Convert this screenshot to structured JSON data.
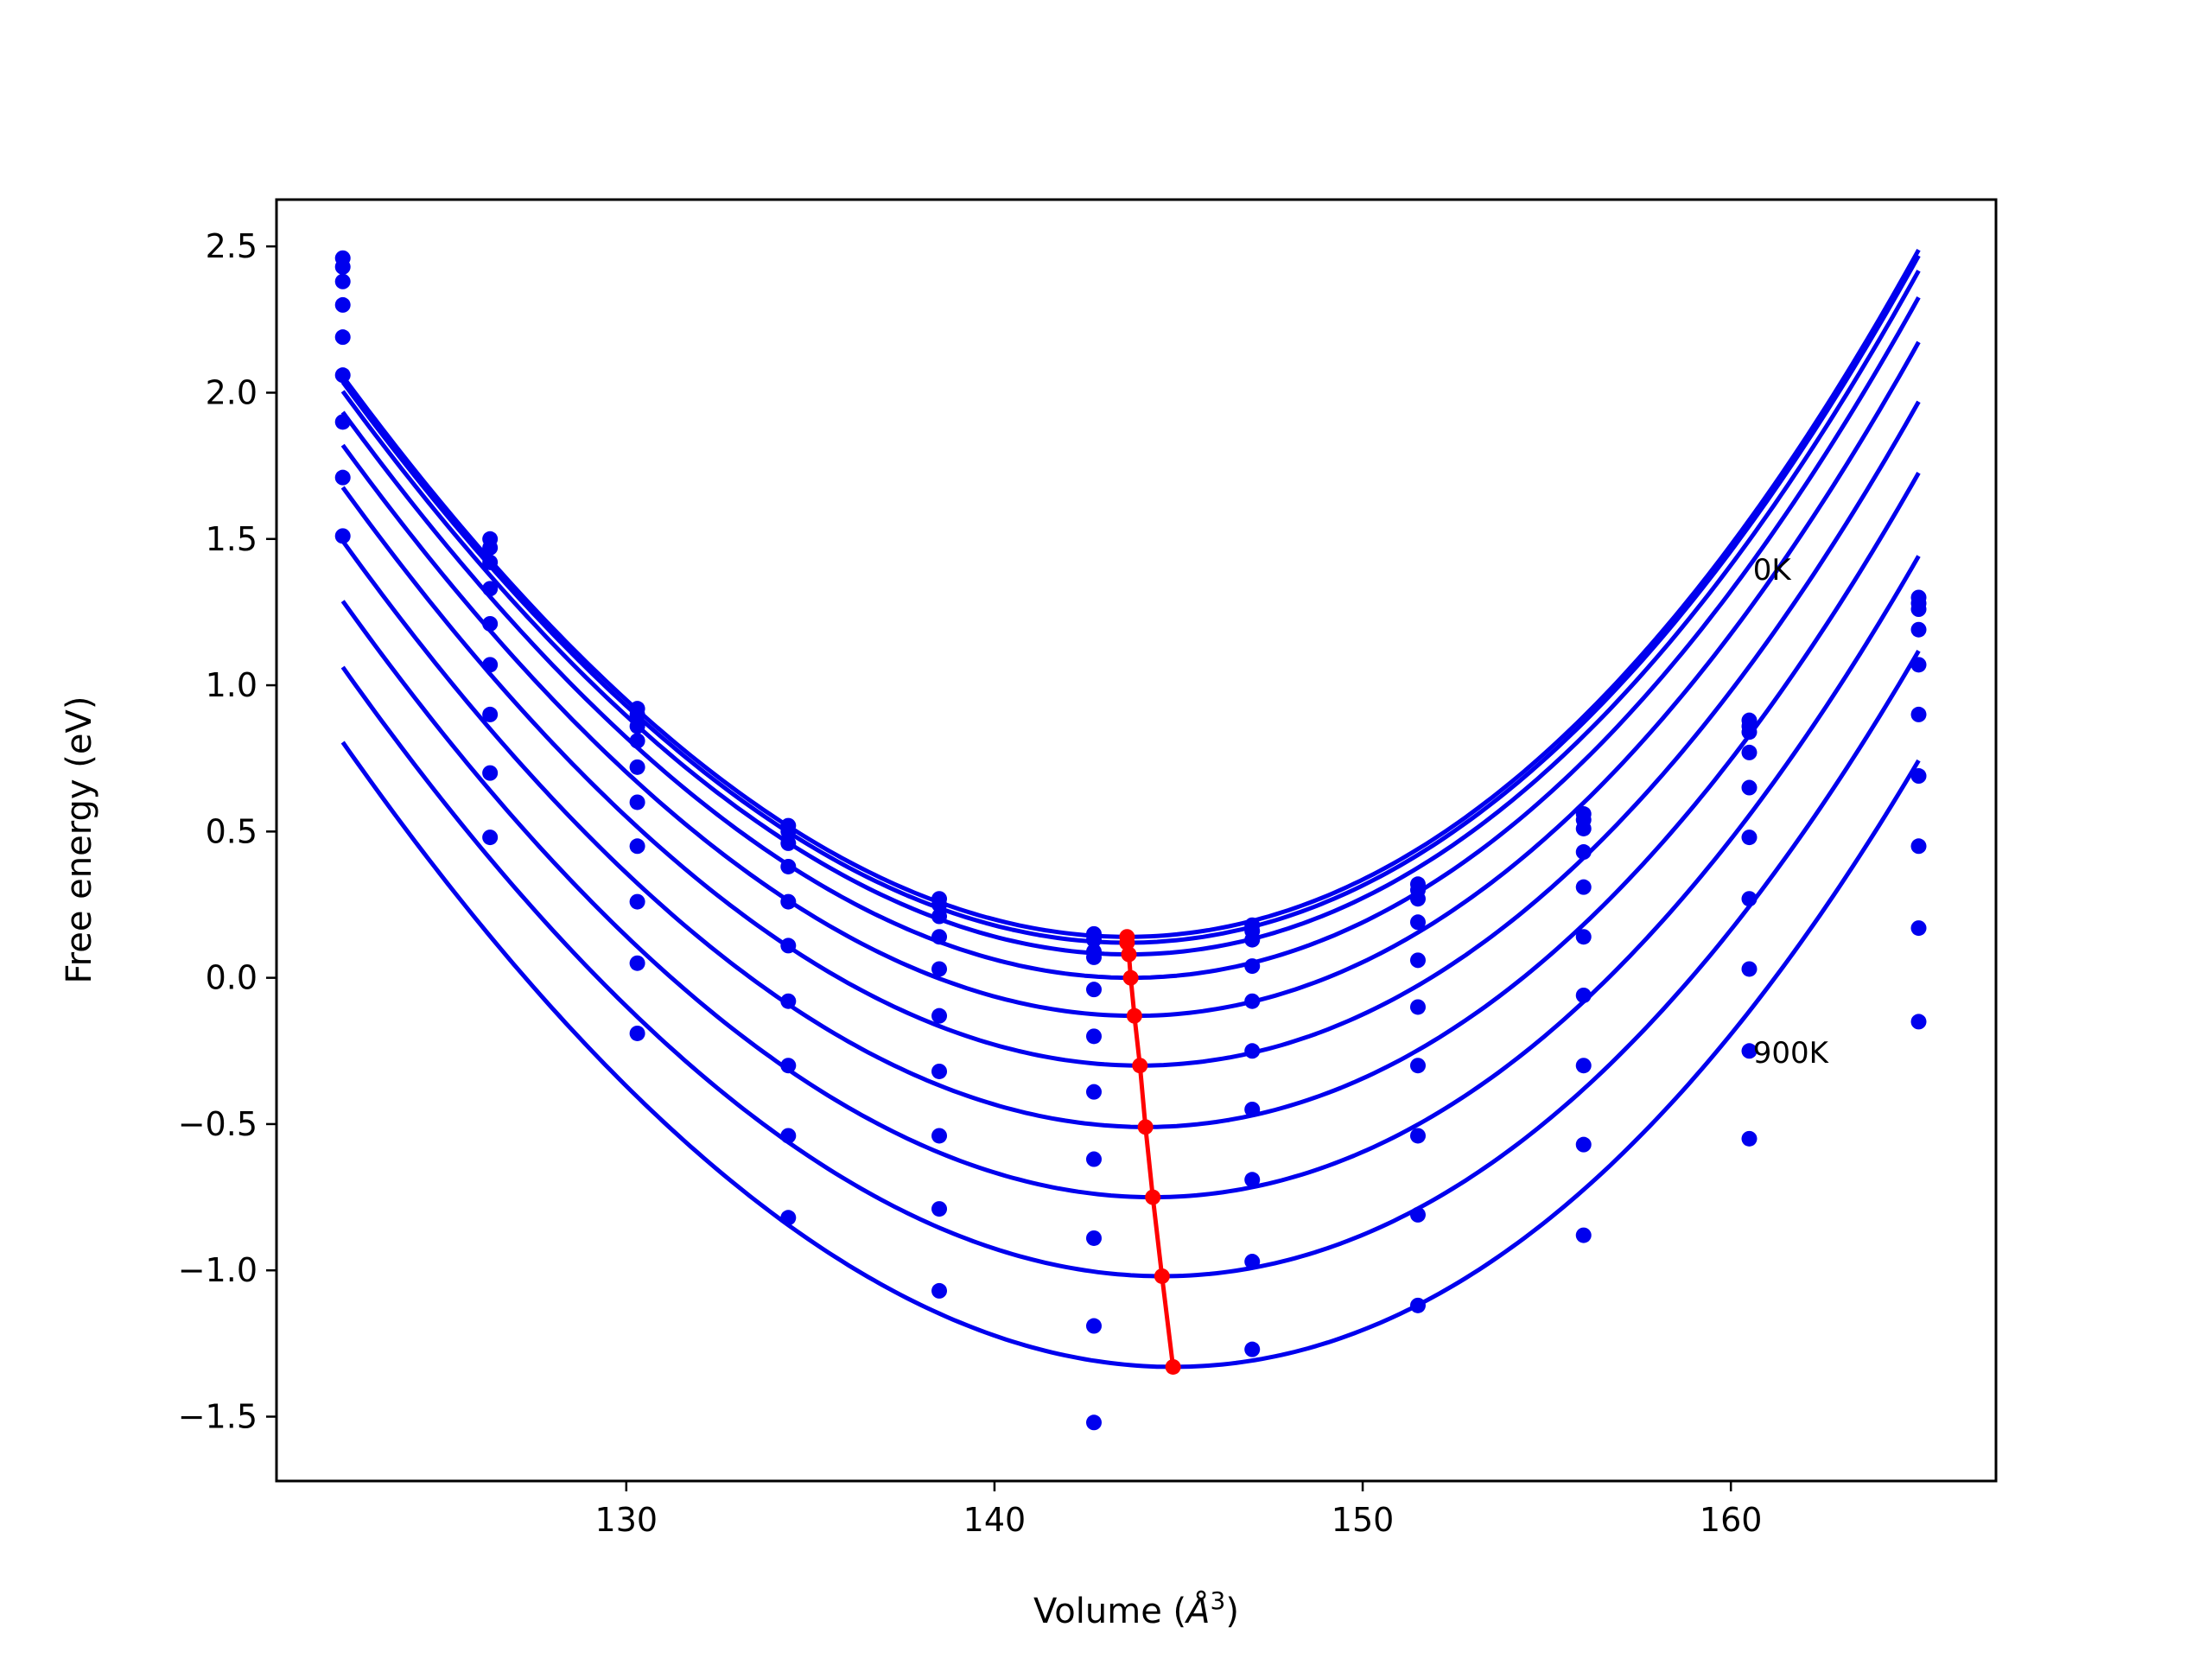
{
  "chart_data": {
    "type": "scatter",
    "title": "",
    "xlabel": "Volume (",
    "xlabel_unit": "Å",
    "xlabel_sup": "3",
    "xlabel_close": ")",
    "ylabel": "Free energy (eV)",
    "xlim": [
      120.5,
      167.2
    ],
    "ylim": [
      -1.72,
      2.66
    ],
    "x_ticks": [
      130,
      140,
      150,
      160
    ],
    "y_ticks": [
      2.5,
      2.0,
      1.5,
      1.0,
      0.5,
      0.0,
      -0.5,
      -1.0,
      -1.5
    ],
    "x_tick_labels": [
      "130",
      "140",
      "150",
      "160"
    ],
    "y_tick_labels": [
      "2.5",
      "2.0",
      "1.5",
      "1.0",
      "0.5",
      "0.0",
      "−0.5",
      "−1.0",
      "−1.5"
    ],
    "grid": false,
    "annotations": [
      {
        "text": "0K",
        "x": 160.6,
        "y": 1.36
      },
      {
        "text": "900K",
        "x": 160.6,
        "y": -0.29
      }
    ],
    "x": [
      122.3,
      126.3,
      130.3,
      134.4,
      138.5,
      142.7,
      147.0,
      151.5,
      156.0,
      160.5,
      165.1
    ],
    "fit_x_range": [
      122.3,
      165.1
    ],
    "series": [
      {
        "values": [
          2.46,
          1.5,
          0.92,
          0.52,
          0.27,
          0.15,
          0.18,
          0.32,
          0.56,
          0.88,
          1.3
        ],
        "fit": {
          "v0": 143.6,
          "e0": 0.14,
          "a": 0.00465,
          "b": 2e-05
        }
      },
      {
        "values": [
          2.43,
          1.47,
          0.9,
          0.5,
          0.25,
          0.13,
          0.16,
          0.3,
          0.54,
          0.86,
          1.28
        ],
        "fit": {
          "v0": 143.6,
          "e0": 0.12,
          "a": 0.00465,
          "b": 2e-05
        }
      },
      {
        "values": [
          2.38,
          1.42,
          0.86,
          0.46,
          0.21,
          0.09,
          0.13,
          0.27,
          0.51,
          0.84,
          1.26
        ],
        "fit": {
          "v0": 143.65,
          "e0": 0.08,
          "a": 0.00465,
          "b": 2e-05
        }
      },
      {
        "values": [
          2.3,
          1.33,
          0.81,
          0.38,
          0.14,
          0.07,
          0.04,
          0.19,
          0.43,
          0.77,
          1.19
        ],
        "fit": {
          "v0": 143.7,
          "e0": 0.0,
          "a": 0.00465,
          "b": 2e-05
        }
      },
      {
        "values": [
          2.19,
          1.21,
          0.72,
          0.26,
          0.03,
          -0.04,
          -0.08,
          0.06,
          0.31,
          0.65,
          1.07
        ],
        "fit": {
          "v0": 143.8,
          "e0": -0.13,
          "a": 0.00465,
          "b": 2e-05
        }
      },
      {
        "values": [
          2.06,
          1.07,
          0.6,
          0.11,
          -0.13,
          -0.2,
          -0.25,
          -0.1,
          0.14,
          0.48,
          0.9
        ],
        "fit": {
          "v0": 143.95,
          "e0": -0.3,
          "a": 0.00465,
          "b": 2e-05
        }
      },
      {
        "values": [
          1.9,
          0.9,
          0.45,
          -0.08,
          -0.32,
          -0.39,
          -0.45,
          -0.3,
          -0.06,
          0.27,
          0.69
        ],
        "fit": {
          "v0": 144.1,
          "e0": -0.51,
          "a": 0.00465,
          "b": 2e-05
        }
      },
      {
        "values": [
          1.71,
          0.7,
          0.26,
          -0.3,
          -0.54,
          -0.62,
          -0.69,
          -0.54,
          -0.3,
          0.03,
          0.45
        ],
        "fit": {
          "v0": 144.3,
          "e0": -0.75,
          "a": 0.00465,
          "b": 2e-05
        }
      },
      {
        "values": [
          1.51,
          0.48,
          0.05,
          -0.54,
          -0.79,
          -0.89,
          -0.97,
          -0.81,
          -0.57,
          -0.25,
          0.17
        ],
        "fit": {
          "v0": 144.55,
          "e0": -1.02,
          "a": 0.00465,
          "b": 2e-05
        }
      },
      {
        "values": [
          null,
          null,
          -0.19,
          -0.82,
          -1.07,
          -1.19,
          -1.27,
          -1.12,
          -0.88,
          -0.55,
          -0.15
        ],
        "fit": {
          "v0": 144.85,
          "e0": -1.33,
          "a": 0.00465,
          "b": 2e-05
        }
      }
    ],
    "extra_points": [
      {
        "x": 142.7,
        "y": -1.52
      }
    ],
    "minima": [
      {
        "x": 143.6,
        "y": 0.14
      },
      {
        "x": 143.6,
        "y": 0.12
      },
      {
        "x": 143.65,
        "y": 0.08
      },
      {
        "x": 143.7,
        "y": 0.0
      },
      {
        "x": 143.8,
        "y": -0.13
      },
      {
        "x": 143.95,
        "y": -0.3
      },
      {
        "x": 144.1,
        "y": -0.51
      },
      {
        "x": 144.3,
        "y": -0.75
      },
      {
        "x": 144.55,
        "y": -1.02
      },
      {
        "x": 144.85,
        "y": -1.33
      }
    ],
    "colors": {
      "curves": "#0000ee",
      "points": "#0000ee",
      "minima_line": "#ff0000",
      "axes": "#000000"
    }
  }
}
